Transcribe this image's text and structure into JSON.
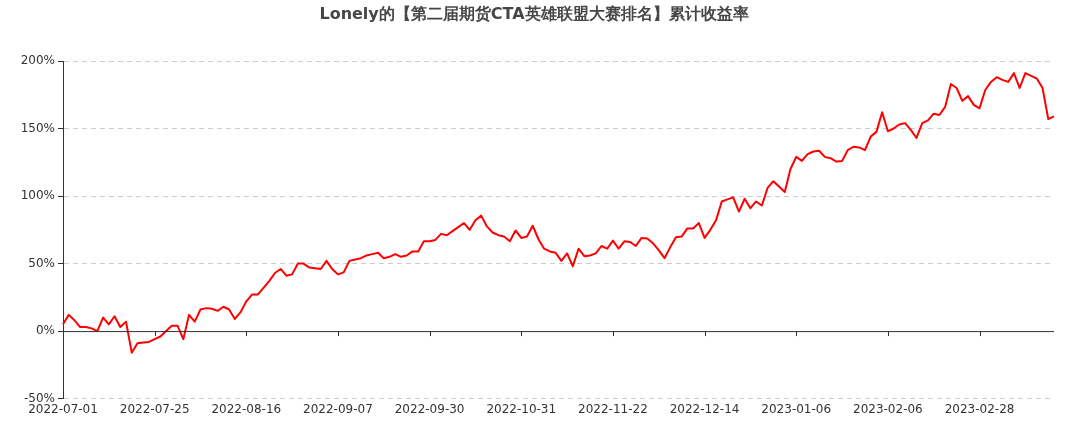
{
  "chart_data": {
    "type": "line",
    "title": "Lonely的【第二届期货CTA英雄联盟大赛排名】累计收益率",
    "categories": [
      "2022-07-01",
      null,
      null,
      null,
      null,
      null,
      null,
      null,
      null,
      null,
      null,
      null,
      null,
      null,
      null,
      null,
      "2022-07-25",
      null,
      null,
      null,
      null,
      null,
      null,
      null,
      null,
      null,
      null,
      null,
      null,
      null,
      null,
      null,
      "2022-08-16",
      null,
      null,
      null,
      null,
      null,
      null,
      null,
      null,
      null,
      null,
      null,
      null,
      null,
      null,
      null,
      "2022-09-07",
      null,
      null,
      null,
      null,
      null,
      null,
      null,
      null,
      null,
      null,
      null,
      null,
      null,
      null,
      null,
      "2022-09-30",
      null,
      null,
      null,
      null,
      null,
      null,
      null,
      null,
      null,
      null,
      null,
      null,
      null,
      null,
      null,
      "2022-10-31",
      null,
      null,
      null,
      null,
      null,
      null,
      null,
      null,
      null,
      null,
      null,
      null,
      null,
      null,
      null,
      "2022-11-22",
      null,
      null,
      null,
      null,
      null,
      null,
      null,
      null,
      null,
      null,
      null,
      null,
      null,
      null,
      null,
      "2022-12-14",
      null,
      null,
      null,
      null,
      null,
      null,
      null,
      null,
      null,
      null,
      null,
      null,
      null,
      null,
      null,
      "2023-01-06",
      null,
      null,
      null,
      null,
      null,
      null,
      null,
      null,
      null,
      null,
      null,
      null,
      null,
      null,
      null,
      "2023-02-06",
      null,
      null,
      null,
      null,
      null,
      null,
      null,
      null,
      null,
      null,
      null,
      null,
      null,
      null,
      null,
      "2023-02-28",
      null,
      null,
      null,
      null,
      null,
      null,
      null,
      null,
      null,
      null,
      null,
      null,
      null
    ],
    "series": [
      {
        "color": "#ff0000",
        "values": [
          5,
          12,
          8,
          3,
          3,
          2,
          0,
          10,
          5,
          11,
          3,
          7,
          -16,
          -9,
          -8.5,
          -8,
          -6,
          -4,
          0,
          4,
          4,
          -6,
          12,
          7,
          16,
          17,
          16.5,
          15,
          18,
          16,
          9,
          14,
          22,
          27,
          27,
          32,
          37,
          43,
          46,
          41,
          42,
          50,
          50,
          47,
          46.5,
          46,
          52,
          46,
          42,
          43.5,
          52,
          53,
          54,
          56,
          57,
          58,
          54,
          55,
          57,
          55,
          56,
          59,
          59,
          66.5,
          66.5,
          67.5,
          72,
          71,
          74,
          77,
          80,
          75,
          82,
          85.5,
          77.5,
          73,
          71,
          70,
          66.5,
          74.5,
          69,
          70,
          78,
          68,
          61,
          59,
          58,
          52,
          57.5,
          48,
          61,
          55.5,
          56,
          57.5,
          63,
          61,
          67,
          61,
          66.5,
          66,
          63,
          69,
          68.5,
          65,
          60,
          54,
          62,
          69.5,
          70,
          76,
          76,
          80,
          69,
          75,
          82,
          96,
          97.5,
          99,
          88.5,
          98,
          91,
          96,
          93,
          106,
          111,
          107,
          103,
          120,
          129,
          126,
          131,
          133,
          133.5,
          129,
          128,
          125.5,
          126,
          134,
          136.5,
          136,
          134,
          144,
          147.5,
          162,
          148,
          150,
          153,
          154,
          149,
          143,
          154,
          156,
          161,
          160,
          166,
          183,
          180,
          170.5,
          174,
          167.5,
          165,
          178.5,
          184.5,
          188,
          186,
          184.5,
          191,
          180,
          191,
          189,
          187,
          180,
          157,
          159
        ]
      }
    ],
    "ylim": [
      -50,
      200
    ],
    "yticks": [
      {
        "value": -50,
        "label": "-50%"
      },
      {
        "value": 0,
        "label": "0%"
      },
      {
        "value": 50,
        "label": "50%"
      },
      {
        "value": 100,
        "label": "100%"
      },
      {
        "value": 150,
        "label": "150%"
      },
      {
        "value": 200,
        "label": "200%"
      }
    ],
    "grid": "y",
    "line_style": "solid"
  }
}
